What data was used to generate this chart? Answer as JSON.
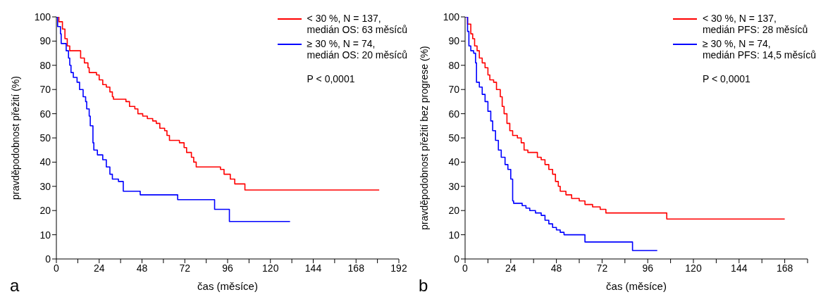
{
  "chart_data": [
    {
      "type": "step",
      "title": "a",
      "xlabel": "čas (měsíce)",
      "ylabel": "pravděpodobnost přežití (%)",
      "xlim": [
        0,
        192
      ],
      "xticks": [
        0,
        {
          "value": 12,
          "label": null
        },
        24,
        {
          "value": 36,
          "label": null
        },
        48,
        {
          "value": 60,
          "label": null
        },
        72,
        {
          "value": 84,
          "label": null
        },
        96,
        {
          "value": 108,
          "label": null
        },
        120,
        {
          "value": 132,
          "label": null
        },
        144,
        {
          "value": 156,
          "label": null
        },
        168,
        {
          "value": 180,
          "label": null
        },
        192
      ],
      "ylim": [
        0,
        100
      ],
      "yticks": [
        0,
        10,
        20,
        30,
        40,
        50,
        60,
        70,
        80,
        90,
        100
      ],
      "legend": "top right",
      "annotations": [
        "P < 0,0001"
      ],
      "line_style": "solid",
      "marker": "none",
      "grid": false,
      "series": [
        {
          "name": "< 30 %, N = 137,\nmedián OS: 63 měsíců",
          "color": "#ff0000",
          "x": [
            0,
            1.4,
            3.4,
            4.8,
            6.1,
            7.5,
            13.6,
            15.7,
            17.7,
            18.4,
            22.5,
            24,
            26,
            28,
            30,
            31.4,
            32,
            39,
            41,
            44,
            45.7,
            48.4,
            51,
            54,
            56,
            58,
            60.7,
            62,
            63.4,
            69,
            71.6,
            73,
            75.7,
            77,
            78.4,
            92,
            94,
            97.5,
            100,
            105.7,
            181
          ],
          "values": [
            100,
            98,
            95,
            91,
            88,
            86,
            83,
            81,
            79,
            77,
            76,
            74,
            72,
            71,
            69,
            67,
            66,
            65,
            63,
            62,
            60,
            59,
            58,
            57,
            56,
            54,
            53,
            51,
            49,
            48,
            46,
            44,
            42,
            40,
            38,
            37,
            35,
            33,
            31,
            28.5,
            28.5
          ]
        },
        {
          "name": "≥ 30 %, N = 74,\nmedián OS: 20 měsíců",
          "color": "#0000ff",
          "x": [
            0,
            0.7,
            2.3,
            2.7,
            5.5,
            6.8,
            7.5,
            8.2,
            9.5,
            11.6,
            13,
            15,
            16.4,
            17,
            18.4,
            19,
            20.5,
            21,
            23,
            26,
            28,
            30,
            31.4,
            34.8,
            37.5,
            47,
            68,
            88.7,
            97,
            131
          ],
          "values": [
            100,
            96,
            93,
            89,
            86,
            83,
            80,
            77,
            75,
            73,
            70,
            67,
            65,
            62,
            59,
            55,
            48,
            45,
            43,
            41,
            38,
            35,
            33,
            32,
            28,
            26.5,
            24.5,
            20.5,
            15.5,
            15.5
          ]
        }
      ]
    },
    {
      "type": "step",
      "title": "b",
      "xlabel": "čas (měsíce)",
      "ylabel": "pravděpodobnost přežití bez progrese (%)",
      "xlim": [
        0,
        180
      ],
      "xticks": [
        0,
        {
          "value": 12,
          "label": null
        },
        24,
        {
          "value": 36,
          "label": null
        },
        48,
        {
          "value": 60,
          "label": null
        },
        72,
        {
          "value": 84,
          "label": null
        },
        96,
        {
          "value": 108,
          "label": null
        },
        120,
        {
          "value": 132,
          "label": null
        },
        144,
        {
          "value": 156,
          "label": null
        },
        168,
        {
          "value": 180,
          "label": null
        }
      ],
      "ylim": [
        0,
        100
      ],
      "yticks": [
        0,
        10,
        20,
        30,
        40,
        50,
        60,
        70,
        80,
        90,
        100
      ],
      "legend": "top right",
      "annotations": [
        "P < 0,0001"
      ],
      "line_style": "solid",
      "marker": "none",
      "grid": false,
      "series": [
        {
          "name": "< 30 %, N = 137,\nmedián PFS: 28 měsíců",
          "color": "#ff0000",
          "x": [
            0,
            1.3,
            3,
            4,
            5,
            6.3,
            7.5,
            9,
            10.5,
            12,
            13,
            15,
            16.5,
            18.5,
            19.5,
            20.5,
            22,
            23.5,
            25,
            27.5,
            29.5,
            31,
            33,
            38,
            40,
            42,
            44,
            46,
            47.5,
            49,
            50,
            53,
            56,
            60,
            63,
            67,
            71,
            74,
            106,
            168
          ],
          "values": [
            100,
            97,
            93,
            91,
            88,
            86,
            83,
            81,
            79,
            76,
            74,
            73,
            70,
            67,
            63,
            60,
            56,
            53,
            51,
            50,
            48,
            45,
            44,
            42,
            41,
            39,
            37,
            35,
            32,
            30,
            28,
            26.5,
            25,
            24,
            22.5,
            21.5,
            20.5,
            19,
            16.5,
            16.5
          ]
        },
        {
          "name": "≥ 30 %, N = 74,\nmedián PFS: 14,5 měsíců",
          "color": "#0000ff",
          "x": [
            0,
            1.3,
            2,
            3,
            4.5,
            5.5,
            6,
            7.5,
            9,
            10.5,
            12,
            13.5,
            14.5,
            16,
            17.5,
            19,
            21,
            22.5,
            24,
            25,
            25.5,
            30,
            32,
            34,
            37,
            40,
            42,
            44,
            46,
            48,
            50,
            52,
            63,
            88,
            101
          ],
          "values": [
            100,
            94,
            88,
            86,
            85,
            81,
            73,
            71,
            68,
            65,
            61,
            57,
            53,
            49,
            45,
            42,
            39,
            37,
            33,
            24,
            23,
            22,
            21,
            20,
            19,
            18,
            16,
            14.5,
            13,
            12,
            11,
            10,
            7,
            3.5,
            3.5
          ]
        }
      ]
    }
  ]
}
